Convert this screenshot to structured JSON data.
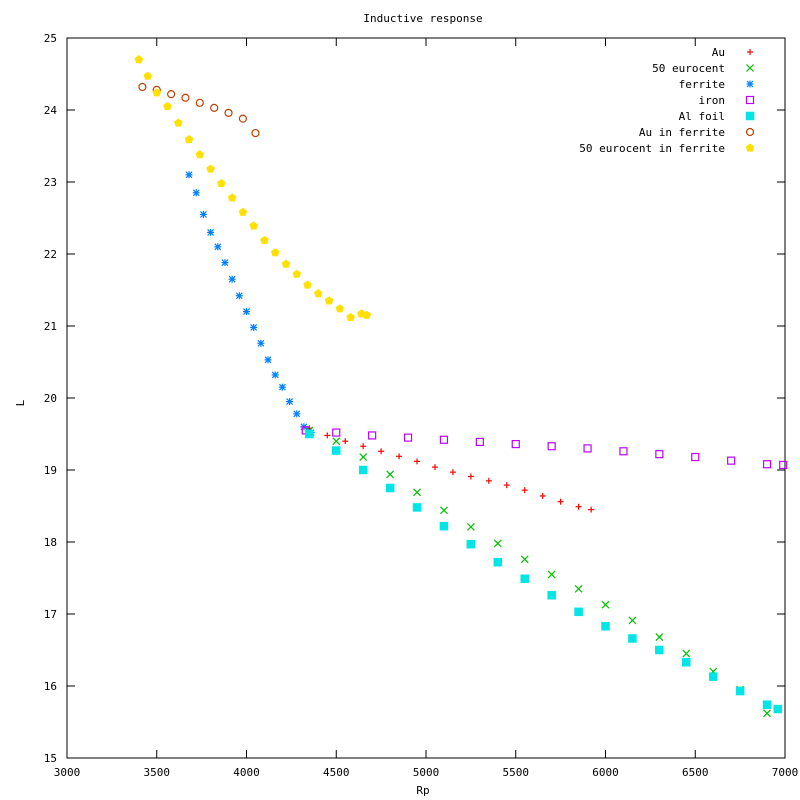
{
  "chart_data": {
    "type": "scatter",
    "title": "Inductive response",
    "xlabel": "Rp",
    "ylabel": "L",
    "xlim": [
      3000,
      7000
    ],
    "ylim": [
      15,
      25
    ],
    "x_ticks": [
      "3000",
      "3500",
      "4000",
      "4500",
      "5000",
      "5500",
      "6000",
      "6500",
      "7000"
    ],
    "y_ticks": [
      "15",
      "16",
      "17",
      "18",
      "19",
      "20",
      "21",
      "22",
      "23",
      "24",
      "25"
    ],
    "grid": false,
    "legend_position": "top-right",
    "series": [
      {
        "name": "Au",
        "color": "#ff0000",
        "marker": "plus",
        "points": [
          [
            4350,
            19.58
          ],
          [
            4450,
            19.48
          ],
          [
            4550,
            19.4
          ],
          [
            4650,
            19.33
          ],
          [
            4750,
            19.26
          ],
          [
            4850,
            19.19
          ],
          [
            4950,
            19.12
          ],
          [
            5050,
            19.04
          ],
          [
            5150,
            18.97
          ],
          [
            5250,
            18.91
          ],
          [
            5350,
            18.85
          ],
          [
            5450,
            18.79
          ],
          [
            5550,
            18.72
          ],
          [
            5650,
            18.64
          ],
          [
            5750,
            18.56
          ],
          [
            5850,
            18.49
          ],
          [
            5920,
            18.45
          ]
        ]
      },
      {
        "name": "50 eurocent",
        "color": "#00c000",
        "marker": "x",
        "points": [
          [
            4350,
            19.55
          ],
          [
            4500,
            19.4
          ],
          [
            4650,
            19.18
          ],
          [
            4800,
            18.94
          ],
          [
            4950,
            18.69
          ],
          [
            5100,
            18.44
          ],
          [
            5250,
            18.21
          ],
          [
            5400,
            17.98
          ],
          [
            5550,
            17.76
          ],
          [
            5700,
            17.55
          ],
          [
            5850,
            17.35
          ],
          [
            6000,
            17.13
          ],
          [
            6150,
            16.91
          ],
          [
            6300,
            16.68
          ],
          [
            6450,
            16.45
          ],
          [
            6600,
            16.2
          ],
          [
            6750,
            15.95
          ],
          [
            6900,
            15.62
          ]
        ]
      },
      {
        "name": "ferrite",
        "color": "#0080ff",
        "marker": "asterisk",
        "points": [
          [
            3680,
            23.1
          ],
          [
            3720,
            22.85
          ],
          [
            3760,
            22.55
          ],
          [
            3800,
            22.3
          ],
          [
            3840,
            22.1
          ],
          [
            3880,
            21.88
          ],
          [
            3920,
            21.65
          ],
          [
            3960,
            21.42
          ],
          [
            4000,
            21.2
          ],
          [
            4040,
            20.98
          ],
          [
            4080,
            20.76
          ],
          [
            4120,
            20.53
          ],
          [
            4160,
            20.32
          ],
          [
            4200,
            20.15
          ],
          [
            4240,
            19.95
          ],
          [
            4280,
            19.78
          ],
          [
            4320,
            19.6
          ],
          [
            4360,
            19.52
          ]
        ]
      },
      {
        "name": "iron",
        "color": "#c000ff",
        "marker": "square-open",
        "points": [
          [
            4330,
            19.55
          ],
          [
            4500,
            19.52
          ],
          [
            4700,
            19.48
          ],
          [
            4900,
            19.45
          ],
          [
            5100,
            19.42
          ],
          [
            5300,
            19.39
          ],
          [
            5500,
            19.36
          ],
          [
            5700,
            19.33
          ],
          [
            5900,
            19.3
          ],
          [
            6100,
            19.26
          ],
          [
            6300,
            19.22
          ],
          [
            6500,
            19.18
          ],
          [
            6700,
            19.13
          ],
          [
            6900,
            19.08
          ],
          [
            6990,
            19.07
          ]
        ]
      },
      {
        "name": "Al foil",
        "color": "#00e5e5",
        "marker": "square-filled",
        "points": [
          [
            4350,
            19.5
          ],
          [
            4500,
            19.27
          ],
          [
            4650,
            19.0
          ],
          [
            4800,
            18.75
          ],
          [
            4950,
            18.48
          ],
          [
            5100,
            18.22
          ],
          [
            5250,
            17.97
          ],
          [
            5400,
            17.72
          ],
          [
            5550,
            17.49
          ],
          [
            5700,
            17.26
          ],
          [
            5850,
            17.03
          ],
          [
            6000,
            16.83
          ],
          [
            6150,
            16.66
          ],
          [
            6300,
            16.5
          ],
          [
            6450,
            16.33
          ],
          [
            6600,
            16.13
          ],
          [
            6750,
            15.93
          ],
          [
            6900,
            15.74
          ],
          [
            6960,
            15.68
          ]
        ]
      },
      {
        "name": "Au in ferrite",
        "color": "#c04000",
        "marker": "circle-open",
        "points": [
          [
            3420,
            24.32
          ],
          [
            3500,
            24.28
          ],
          [
            3580,
            24.22
          ],
          [
            3660,
            24.17
          ],
          [
            3740,
            24.1
          ],
          [
            3820,
            24.03
          ],
          [
            3900,
            23.96
          ],
          [
            3980,
            23.88
          ],
          [
            4050,
            23.68
          ]
        ]
      },
      {
        "name": "50 eurocent in ferrite",
        "color": "#ffe000",
        "marker": "pentagon-filled",
        "points": [
          [
            3400,
            24.7
          ],
          [
            3450,
            24.47
          ],
          [
            3500,
            24.24
          ],
          [
            3560,
            24.05
          ],
          [
            3620,
            23.82
          ],
          [
            3680,
            23.59
          ],
          [
            3740,
            23.38
          ],
          [
            3800,
            23.18
          ],
          [
            3860,
            22.98
          ],
          [
            3920,
            22.78
          ],
          [
            3980,
            22.58
          ],
          [
            4040,
            22.39
          ],
          [
            4100,
            22.19
          ],
          [
            4160,
            22.02
          ],
          [
            4220,
            21.86
          ],
          [
            4280,
            21.72
          ],
          [
            4340,
            21.57
          ],
          [
            4400,
            21.45
          ],
          [
            4460,
            21.35
          ],
          [
            4520,
            21.24
          ],
          [
            4580,
            21.12
          ],
          [
            4640,
            21.17
          ],
          [
            4670,
            21.15
          ]
        ]
      }
    ]
  }
}
